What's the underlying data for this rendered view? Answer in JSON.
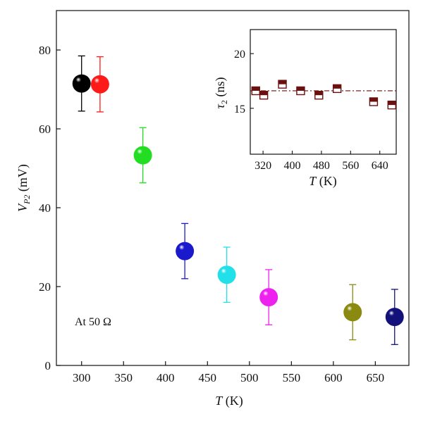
{
  "chart_data": [
    {
      "type": "scatter",
      "annotation": "At 50 Ω",
      "xlabel": {
        "italic": "T",
        "unit": " (K)"
      },
      "ylabel": {
        "italic": "V",
        "subscript": "P2",
        "unit": " (mV)"
      },
      "xlim": [
        270,
        690
      ],
      "ylim": [
        0,
        90
      ],
      "xticks": [
        300,
        350,
        400,
        450,
        500,
        550,
        600,
        650
      ],
      "yticks": [
        0,
        20,
        40,
        60,
        80
      ],
      "grid": false,
      "points": [
        {
          "x": 300,
          "y": 71.5,
          "err": 7,
          "color": "#000000"
        },
        {
          "x": 322,
          "y": 71.3,
          "err": 7,
          "color": "#ff1a1a"
        },
        {
          "x": 373,
          "y": 53.3,
          "err": 7,
          "color": "#22dd22"
        },
        {
          "x": 423,
          "y": 29.0,
          "err": 7,
          "color": "#1a1acc"
        },
        {
          "x": 473,
          "y": 23.0,
          "err": 7,
          "color": "#22e0ea"
        },
        {
          "x": 523,
          "y": 17.3,
          "err": 7,
          "color": "#ee22ee"
        },
        {
          "x": 623,
          "y": 13.5,
          "err": 7,
          "color": "#8a8a10"
        },
        {
          "x": 673,
          "y": 12.3,
          "err": 7,
          "color": "#12127a"
        }
      ]
    },
    {
      "type": "scatter",
      "inset": true,
      "xlabel": {
        "italic": "T",
        "unit": " (K)"
      },
      "ylabel": {
        "greek": "τ",
        "subscript": "2",
        "unit": " (ns)"
      },
      "xlim": [
        285,
        685
      ],
      "ylim": [
        10.8,
        22.2
      ],
      "xticks": [
        320,
        400,
        480,
        560,
        640
      ],
      "yticks": [
        15,
        20
      ],
      "marker_color": "#6b0f0f",
      "reference_line": {
        "y": 16.6,
        "style": "dash-dot",
        "color": "#6b0f0f"
      },
      "points": [
        {
          "x": 300,
          "y": 16.6
        },
        {
          "x": 322,
          "y": 16.2
        },
        {
          "x": 373,
          "y": 17.2
        },
        {
          "x": 423,
          "y": 16.6
        },
        {
          "x": 473,
          "y": 16.2
        },
        {
          "x": 523,
          "y": 16.8
        },
        {
          "x": 623,
          "y": 15.6
        },
        {
          "x": 673,
          "y": 15.3
        }
      ]
    }
  ]
}
